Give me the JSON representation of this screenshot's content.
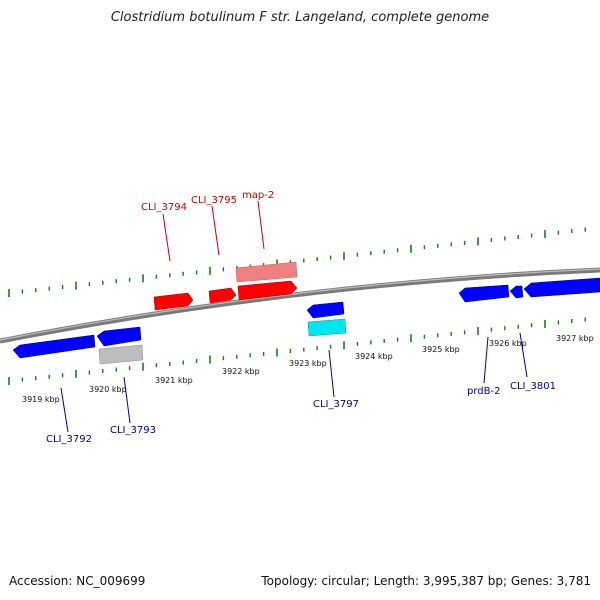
{
  "title": "Clostridium botulinum F str. Langeland, complete genome",
  "accession_text": "Accession: NC_009699",
  "topology_text": "Topology: circular; Length: 3,995,387 bp; Genes: 3,781",
  "colors": {
    "backbone": "#808080",
    "tick": "#1a7a1a",
    "forward_gene": "#ff0000",
    "forward_gene_light": "#f08080",
    "reverse_gene": "#0000ff",
    "reverse_gene_cyan": "#00e5ee",
    "other_gene": "#bdbdbd",
    "forward_label": "#cc0000",
    "reverse_label": "#000099"
  },
  "kbp_labels": [
    "3919 kbp",
    "3920 kbp",
    "3921 kbp",
    "3922 kbp",
    "3923 kbp",
    "3924 kbp",
    "3925 kbp",
    "3926 kbp",
    "3927 kbp"
  ],
  "forward_gene_labels": [
    "CLI_3794",
    "CLI_3795",
    "map-2"
  ],
  "reverse_gene_labels": [
    "CLI_3792",
    "CLI_3793",
    "CLI_3797",
    "prdB-2",
    "CLI_3801"
  ]
}
